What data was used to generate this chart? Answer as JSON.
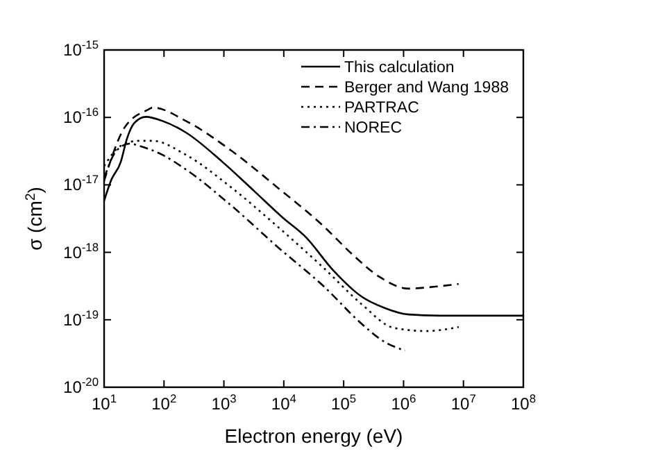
{
  "chart_data": {
    "type": "line",
    "xlabel": "Electron energy (eV)",
    "ylabel": "σ (cm$^{2}$)",
    "log": "xy",
    "legend": "top right",
    "grid": false,
    "xlim": [
      10,
      100000000.0
    ],
    "ylim": [
      1e-20,
      1e-15
    ],
    "xticks": [
      {
        "value": 10,
        "label": "10$^{1}$"
      },
      {
        "value": 100,
        "label": "10$^{2}$"
      },
      {
        "value": 1000,
        "label": "10$^{3}$"
      },
      {
        "value": 10000,
        "label": "10$^{4}$"
      },
      {
        "value": 100000,
        "label": "10$^{5}$"
      },
      {
        "value": 1000000,
        "label": "10$^{6}$"
      },
      {
        "value": 10000000,
        "label": "10$^{7}$"
      },
      {
        "value": 100000000,
        "label": "10$^{8}$"
      }
    ],
    "yticks": [
      {
        "value": 1e-20,
        "label": "10$^{-20}$"
      },
      {
        "value": 1e-19,
        "label": "10$^{-19}$"
      },
      {
        "value": 1e-18,
        "label": "10$^{-18}$"
      },
      {
        "value": 1e-17,
        "label": "10$^{-17}$"
      },
      {
        "value": 1e-16,
        "label": "10$^{-16}$"
      },
      {
        "value": 1e-15,
        "label": "10$^{-15}$"
      }
    ],
    "series": [
      {
        "name": "This calculation",
        "color": "#000000",
        "line_style": "solid",
        "x": [
          10,
          13,
          19,
          24,
          32,
          50,
          93,
          230,
          940,
          3300,
          9500,
          23000,
          67000,
          200000,
          480000,
          1200000,
          4000000,
          100000000
        ],
        "values": [
          5.8e-18,
          1.15e-17,
          2.2e-17,
          4.8e-17,
          8.3e-17,
          1.02e-16,
          8.9e-17,
          6e-17,
          2.2e-17,
          7.9e-18,
          3.3e-18,
          1.7e-18,
          5.4e-19,
          2.2e-19,
          1.5e-19,
          1.2e-19,
          1.15e-19,
          1.15e-19
        ]
      },
      {
        "name": "Berger and Wang 1988",
        "color": "#000000",
        "line_style": "dashed",
        "x": [
          10,
          22,
          54,
          65,
          230,
          1340,
          7900,
          47000,
          140000,
          400000,
          1200000,
          3400000,
          8300000
        ],
        "values": [
          1.15e-17,
          7.1e-17,
          1.3e-16,
          1.4e-16,
          8.9e-17,
          3.2e-17,
          9.1e-18,
          2.4e-18,
          9.3e-19,
          4.3e-19,
          2.9e-19,
          3.1e-19,
          3.4e-19
        ]
      },
      {
        "name": "PARTRAC",
        "color": "#000000",
        "line_style": "dotted",
        "x": [
          10,
          19,
          38,
          65,
          230,
          1340,
          7900,
          47000,
          200000,
          680000,
          2400000,
          8300000
        ],
        "values": [
          1.9e-17,
          3.8e-17,
          4.5e-17,
          4.5e-17,
          2.8e-17,
          9.1e-18,
          2.4e-18,
          5.8e-19,
          1.7e-19,
          7.6e-20,
          6.8e-20,
          7.8e-20
        ]
      },
      {
        "name": "NOREC",
        "color": "#000000",
        "line_style": "dashdot",
        "x": [
          10,
          16,
          27,
          38,
          93,
          230,
          1340,
          7900,
          47000,
          200000,
          480000,
          1060000
        ],
        "values": [
          1.26e-17,
          3.2e-17,
          4.1e-17,
          3.8e-17,
          2.8e-17,
          1.7e-17,
          4.9e-18,
          1.2e-18,
          3.1e-19,
          8.7e-20,
          4.7e-20,
          3.5e-20
        ]
      }
    ]
  }
}
